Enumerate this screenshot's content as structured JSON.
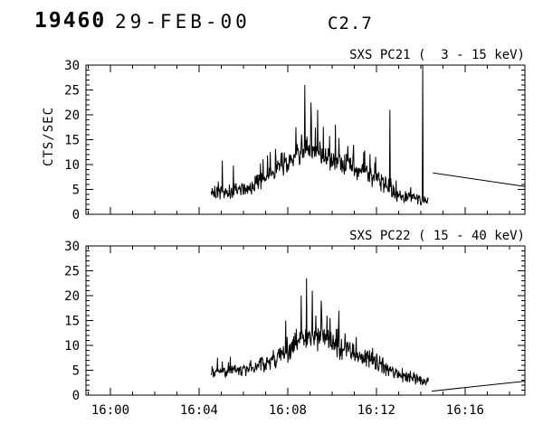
{
  "header": {
    "event_number": "19460",
    "date": "29-FEB-00",
    "flare_class": "C2.7"
  },
  "chart_data": [
    {
      "type": "line",
      "title": "SXS PC21 (  3 - 15 keV)",
      "ylabel": "CTS/SEC",
      "xlim_minutes_from_1600": [
        -1.1,
        18.7
      ],
      "ylim": [
        0,
        30
      ],
      "yticks": [
        0,
        5,
        10,
        15,
        20,
        25,
        30
      ],
      "y_minor_step": 1,
      "x_minor_step_minutes": 1,
      "xticks": [
        {
          "t_minutes": 0,
          "label": "16:00"
        },
        {
          "t_minutes": 4,
          "label": "16:04"
        },
        {
          "t_minutes": 8,
          "label": "16:08"
        },
        {
          "t_minutes": 12,
          "label": "16:12"
        },
        {
          "t_minutes": 16,
          "label": "16:16"
        }
      ],
      "noise_seed": 20,
      "burst": {
        "t_start": 4.55,
        "t_end": 14.35,
        "sample_step": 0.02,
        "envelope_t_mean_amp": [
          [
            4.55,
            4.3,
            1.6
          ],
          [
            5.4,
            4.6,
            1.8
          ],
          [
            6.2,
            5.2,
            1.9
          ],
          [
            6.8,
            7.0,
            2.2
          ],
          [
            7.6,
            9.5,
            2.7
          ],
          [
            8.3,
            12.0,
            3.2
          ],
          [
            8.9,
            13.5,
            3.8
          ],
          [
            9.4,
            12.5,
            3.4
          ],
          [
            10.2,
            10.5,
            3.0
          ],
          [
            11.0,
            9.5,
            2.8
          ],
          [
            11.8,
            8.0,
            2.6
          ],
          [
            12.4,
            6.0,
            2.2
          ],
          [
            13.0,
            3.8,
            1.6
          ],
          [
            13.6,
            3.2,
            1.4
          ],
          [
            14.35,
            2.8,
            1.2
          ]
        ],
        "spikes_t_peak": [
          [
            5.05,
            10.8
          ],
          [
            5.55,
            9.8
          ],
          [
            7.2,
            12.5
          ],
          [
            8.78,
            26.0
          ],
          [
            9.05,
            22.5
          ],
          [
            9.35,
            21.0
          ],
          [
            10.15,
            18.0
          ],
          [
            12.6,
            21.0
          ],
          [
            14.08,
            34.0
          ]
        ]
      },
      "tail_line_t_y": [
        [
          14.55,
          8.3
        ],
        [
          18.7,
          5.6
        ]
      ]
    },
    {
      "type": "line",
      "title": "SXS PC22 ( 15 - 40 keV)",
      "ylabel": "",
      "xlim_minutes_from_1600": [
        -1.1,
        18.7
      ],
      "ylim": [
        0,
        30
      ],
      "yticks": [
        0,
        5,
        10,
        15,
        20,
        25,
        30
      ],
      "y_minor_step": 1,
      "x_minor_step_minutes": 1,
      "xticks": [
        {
          "t_minutes": 0,
          "label": "16:00"
        },
        {
          "t_minutes": 4,
          "label": "16:04"
        },
        {
          "t_minutes": 8,
          "label": "16:08"
        },
        {
          "t_minutes": 12,
          "label": "16:12"
        },
        {
          "t_minutes": 16,
          "label": "16:16"
        }
      ],
      "noise_seed": 77,
      "burst": {
        "t_start": 4.55,
        "t_end": 14.35,
        "sample_step": 0.02,
        "envelope_t_mean_amp": [
          [
            4.55,
            4.8,
            1.5
          ],
          [
            5.5,
            5.0,
            1.6
          ],
          [
            6.5,
            5.5,
            1.8
          ],
          [
            7.3,
            7.0,
            2.1
          ],
          [
            8.0,
            9.0,
            2.6
          ],
          [
            8.8,
            11.5,
            3.2
          ],
          [
            9.2,
            12.0,
            3.4
          ],
          [
            9.8,
            10.5,
            3.0
          ],
          [
            10.6,
            9.0,
            2.7
          ],
          [
            11.4,
            7.5,
            2.4
          ],
          [
            12.2,
            6.0,
            2.1
          ],
          [
            12.9,
            4.5,
            1.8
          ],
          [
            13.6,
            3.5,
            1.5
          ],
          [
            14.35,
            2.5,
            1.2
          ]
        ],
        "spikes_t_peak": [
          [
            7.9,
            15.0
          ],
          [
            8.6,
            20.0
          ],
          [
            8.85,
            23.5
          ],
          [
            9.1,
            21.0
          ],
          [
            9.5,
            19.0
          ],
          [
            10.3,
            17.0
          ]
        ]
      },
      "tail_line_t_y": [
        [
          14.5,
          0.8
        ],
        [
          18.7,
          2.8
        ]
      ]
    }
  ],
  "colors": {
    "foreground": "#000000",
    "background": "#ffffff"
  }
}
